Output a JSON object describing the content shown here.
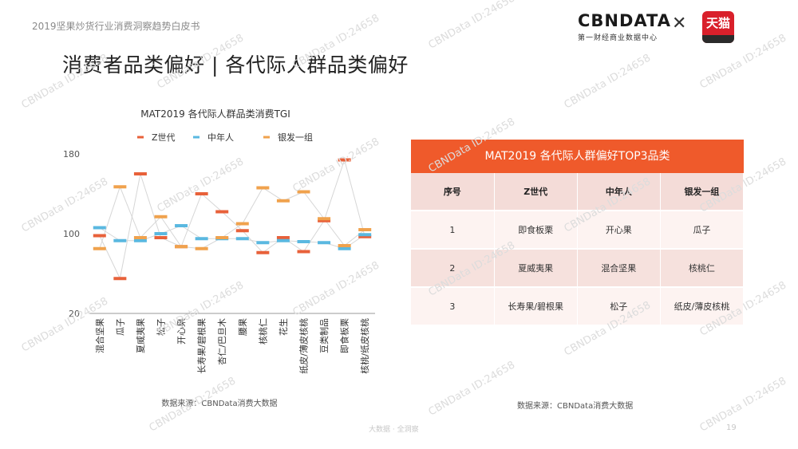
{
  "header": {
    "report_title": "2019坚果炒货行业消费洞察趋势白皮书",
    "page_heading": "消费者品类偏好 | 各代际人群品类偏好",
    "cbn_logo_name": "CBNDATA",
    "cbn_logo_sub": "第一财经商业数据中心",
    "tmall_logo_text": "天猫"
  },
  "watermark_text": "CBNData ID:24658",
  "chart_data": {
    "type": "line",
    "title": "MAT2019 各代际人群品类消费TGI",
    "categories": [
      "混合坚果",
      "瓜子",
      "夏威夷果",
      "松子",
      "开心果",
      "长寿果/碧根果",
      "杏仁/巴旦木",
      "腰果",
      "核桃仁",
      "花生",
      "纸皮/薄皮核桃",
      "豆类制品",
      "即食板栗",
      "核桃/纸皮核桃"
    ],
    "ylim": [
      20,
      180
    ],
    "yticks": [
      20,
      100,
      180
    ],
    "series": [
      {
        "name": "Z世代",
        "color": "#e8613a",
        "values": [
          98,
          55,
          160,
          96,
          87,
          140,
          122,
          103,
          81,
          96,
          82,
          113,
          174,
          97
        ]
      },
      {
        "name": "中年人",
        "color": "#5ab8e0",
        "values": [
          106,
          93,
          93,
          100,
          108,
          95,
          95,
          95,
          91,
          93,
          92,
          91,
          85,
          99
        ]
      },
      {
        "name": "银发一组",
        "color": "#f0a24d",
        "values": [
          85,
          147,
          96,
          117,
          87,
          85,
          96,
          110,
          146,
          133,
          142,
          115,
          88,
          104
        ]
      }
    ],
    "source": "数据来源：CBNData消费大数据"
  },
  "table": {
    "title": "MAT2019 各代际人群偏好TOP3品类",
    "headers": [
      "序号",
      "Z世代",
      "中年人",
      "银发一组"
    ],
    "rows": [
      [
        "1",
        "即食板栗",
        "开心果",
        "瓜子"
      ],
      [
        "2",
        "夏威夷果",
        "混合坚果",
        "核桃仁"
      ],
      [
        "3",
        "长寿果/碧根果",
        "松子",
        "纸皮/薄皮核桃"
      ]
    ],
    "source": "数据来源：CBNData消费大数据"
  },
  "footer": {
    "text": "大数据 · 全洞察",
    "page_number": "19"
  }
}
